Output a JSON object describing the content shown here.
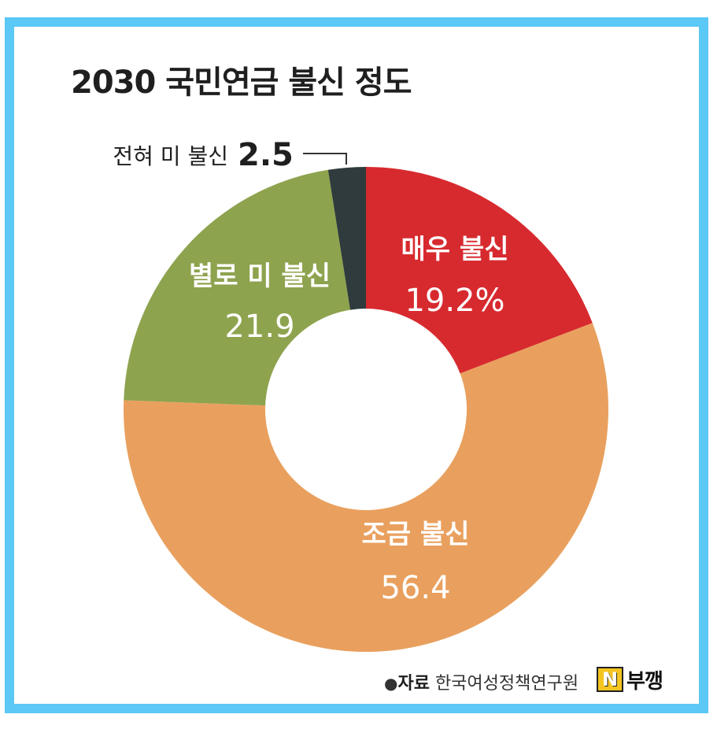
{
  "title": "2030 국민연금 불신 정도",
  "source": {
    "bullet": "●",
    "label": "자료",
    "text": "한국여성정책연구원"
  },
  "watermark": {
    "logo_letter": "N",
    "text": "부깽"
  },
  "colors": {
    "frame": "#5bc8f5",
    "매우 불신": "#d72a2f",
    "조금 불신": "#e9a05e",
    "별로 미 불신": "#8ea34e",
    "전혀 미 불신": "#2f3b3c"
  },
  "chart_data": {
    "type": "pie",
    "style": "donut",
    "title": "2030 국민연금 불신 정도",
    "unit": "%",
    "categories": [
      "매우 불신",
      "조금 불신",
      "별로 미 불신",
      "전혀 미 불신"
    ],
    "values": [
      19.2,
      56.4,
      21.9,
      2.5
    ],
    "value_labels": [
      "19.2%",
      "56.4",
      "21.9",
      "2.5"
    ],
    "colors": [
      "#d72a2f",
      "#e9a05e",
      "#8ea34e",
      "#2f3b3c"
    ],
    "start_angle_deg": 0,
    "direction": "clockwise",
    "legend": "none"
  }
}
